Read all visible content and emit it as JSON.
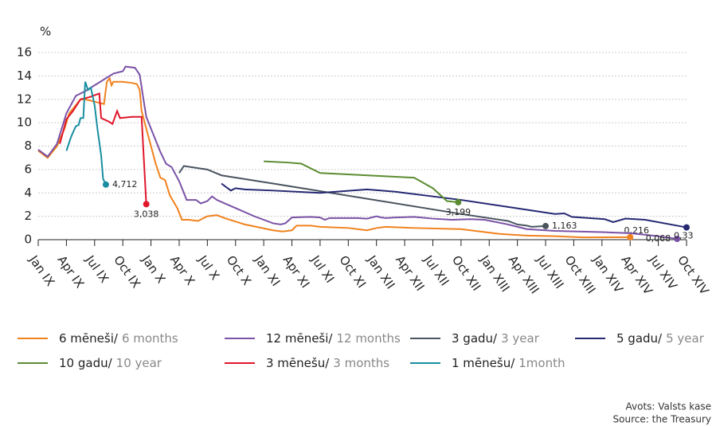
{
  "chart_data": {
    "type": "line",
    "y_unit": "%",
    "xlim": [
      0,
      69
    ],
    "xticks": [
      {
        "value": 0,
        "label": "Jan IX"
      },
      {
        "value": 3,
        "label": "Apr IX"
      },
      {
        "value": 6,
        "label": "Jul IX"
      },
      {
        "value": 9,
        "label": "Oct IX"
      },
      {
        "value": 12,
        "label": "Jan X"
      },
      {
        "value": 15,
        "label": "Apr X"
      },
      {
        "value": 18,
        "label": "Jul X"
      },
      {
        "value": 21,
        "label": "Oct X"
      },
      {
        "value": 24,
        "label": "Jan XI"
      },
      {
        "value": 27,
        "label": "Apr XI"
      },
      {
        "value": 30,
        "label": "Jul XI"
      },
      {
        "value": 33,
        "label": "Oct XI"
      },
      {
        "value": 36,
        "label": "Jan XII"
      },
      {
        "value": 39,
        "label": "Apr XII"
      },
      {
        "value": 42,
        "label": "Jul XII"
      },
      {
        "value": 45,
        "label": "Oct XII"
      },
      {
        "value": 48,
        "label": "Jan XIII"
      },
      {
        "value": 51,
        "label": "Apr XIII"
      },
      {
        "value": 54,
        "label": "Jul XIII"
      },
      {
        "value": 57,
        "label": "Oct XIII"
      },
      {
        "value": 60,
        "label": "Jan XIV"
      },
      {
        "value": 63,
        "label": "Apr XIV"
      },
      {
        "value": 66,
        "label": "Jul XIV"
      },
      {
        "value": 69,
        "label": "Oct XIV"
      }
    ],
    "ylim": [
      0,
      16
    ],
    "yticks": [
      0,
      2,
      4,
      6,
      8,
      10,
      12,
      14,
      16
    ],
    "grid": true,
    "series": [
      {
        "name": "6 mēneši/",
        "name_en": "6 months",
        "color": "#f0821e",
        "x": [
          0,
          1,
          2,
          2.8,
          3.3,
          4,
          4.5,
          5,
          6,
          7,
          7.3,
          7.6,
          7.8,
          8,
          9,
          10,
          10.5,
          10.8,
          11,
          11.5,
          12,
          12.5,
          13,
          13.5,
          14,
          14.8,
          15.3,
          16,
          17,
          18,
          19,
          20,
          22,
          25,
          26,
          27,
          27.5,
          29,
          30,
          33,
          35,
          36,
          37,
          40,
          45,
          49,
          52,
          55,
          58,
          63
        ],
        "values": [
          7.6,
          7.0,
          8.0,
          9.5,
          10.8,
          11.5,
          12,
          12,
          11.8,
          11.6,
          13.5,
          13.8,
          13.2,
          13.5,
          13.5,
          13.4,
          13.3,
          12.8,
          11,
          9.5,
          8,
          6.5,
          5.3,
          5.1,
          3.8,
          2.7,
          1.7,
          1.7,
          1.6,
          2.0,
          2.1,
          1.8,
          1.3,
          0.8,
          0.7,
          0.8,
          1.2,
          1.2,
          1.1,
          1.0,
          0.8,
          1.0,
          1.1,
          1.0,
          0.9,
          0.5,
          0.35,
          0.3,
          0.2,
          0.216
        ],
        "value_labels": [
          null,
          null,
          null,
          null,
          null,
          null,
          null,
          null,
          null,
          null,
          null,
          null,
          null,
          null,
          null,
          null,
          null,
          null,
          null,
          null,
          null,
          null,
          null,
          null,
          null,
          null,
          null,
          null,
          null,
          null,
          null,
          null,
          null,
          null,
          null,
          null,
          null,
          null,
          null,
          null,
          null,
          null,
          null,
          null,
          null,
          null,
          null,
          null,
          null,
          "0,216"
        ]
      },
      {
        "name": "12 mēneši/",
        "name_en": "12 months",
        "color": "#7b52a6",
        "x": [
          0,
          1,
          2,
          3,
          4,
          5,
          6,
          7,
          8,
          9,
          9.3,
          10.3,
          10.8,
          11.2,
          11.5,
          12,
          13,
          13.6,
          14.2,
          15,
          15.8,
          16.8,
          17.3,
          18,
          18.5,
          19,
          21,
          23,
          25,
          25.8,
          26.3,
          27,
          29,
          30,
          30.5,
          31,
          32,
          34,
          35,
          36,
          36.5,
          37,
          38,
          40,
          42,
          44,
          46,
          47.5,
          50,
          52,
          55,
          60,
          63,
          66,
          68
        ],
        "values": [
          7.7,
          7.1,
          8.2,
          10.8,
          12.3,
          12.7,
          13.2,
          13.7,
          14.2,
          14.4,
          14.8,
          14.7,
          14.1,
          12.0,
          10.5,
          9.5,
          7.5,
          6.5,
          6.2,
          5.0,
          3.4,
          3.4,
          3.1,
          3.3,
          3.7,
          3.4,
          2.7,
          2.0,
          1.4,
          1.3,
          1.4,
          1.9,
          1.95,
          1.9,
          1.7,
          1.85,
          1.85,
          1.85,
          1.8,
          2.0,
          1.9,
          1.85,
          1.9,
          1.95,
          1.8,
          1.7,
          1.75,
          1.7,
          1.3,
          0.9,
          0.75,
          0.65,
          0.55,
          0.3,
          0.068
        ],
        "value_labels": [
          null,
          null,
          null,
          null,
          null,
          null,
          null,
          null,
          null,
          null,
          null,
          null,
          null,
          null,
          null,
          null,
          null,
          null,
          null,
          null,
          null,
          null,
          null,
          null,
          null,
          null,
          null,
          null,
          null,
          null,
          null,
          null,
          null,
          null,
          null,
          null,
          null,
          null,
          null,
          null,
          null,
          null,
          null,
          null,
          null,
          null,
          null,
          null,
          null,
          null,
          null,
          null,
          null,
          null,
          "0,068"
        ]
      },
      {
        "name": "3 gadu/",
        "name_en": "3 year",
        "color": "#4a5560",
        "x": [
          15,
          15.5,
          18,
          19.5,
          25,
          35,
          45,
          50,
          51,
          52,
          52.5,
          54
        ],
        "values": [
          5.7,
          6.3,
          6.0,
          5.5,
          4.8,
          3.5,
          2.2,
          1.6,
          1.3,
          1.2,
          1.1,
          1.163
        ],
        "value_labels": [
          null,
          null,
          null,
          null,
          null,
          null,
          null,
          null,
          null,
          null,
          null,
          "1,163"
        ]
      },
      {
        "name": "5 gadu/",
        "name_en": "5 year",
        "color": "#262872",
        "x": [
          19.5,
          20,
          20.5,
          21,
          22,
          25,
          30,
          35,
          38,
          45,
          50,
          55,
          56,
          56.8,
          60.3,
          61.2,
          62.5,
          64.6,
          69
        ],
        "values": [
          4.8,
          4.5,
          4.2,
          4.4,
          4.3,
          4.2,
          4.0,
          4.3,
          4.1,
          3.4,
          2.8,
          2.2,
          2.25,
          1.95,
          1.75,
          1.5,
          1.8,
          1.7,
          1.05
        ]
      },
      {
        "name": "10 gadu/",
        "name_en": "10 year",
        "color": "#5b8c32",
        "x": [
          24,
          26.5,
          28,
          30,
          40,
          42,
          43.5,
          44.7
        ],
        "values": [
          6.7,
          6.6,
          6.5,
          5.7,
          5.3,
          4.4,
          3.3,
          3.199
        ],
        "value_labels": [
          null,
          null,
          null,
          null,
          null,
          null,
          null,
          "3,199"
        ]
      },
      {
        "name": "3 mēnešu/",
        "name_en": "3 months",
        "color": "#e0162b",
        "x": [
          2.3,
          3,
          3.7,
          4.5,
          5.5,
          6.5,
          6.7,
          7.5,
          7.9,
          8.4,
          8.7,
          10,
          11,
          11.5
        ],
        "values": [
          8.2,
          10.3,
          11,
          12,
          12.2,
          12.5,
          10.4,
          10.1,
          9.9,
          11.0,
          10.4,
          10.5,
          10.5,
          3.038
        ],
        "value_labels": [
          null,
          null,
          null,
          null,
          null,
          null,
          null,
          null,
          null,
          null,
          null,
          null,
          null,
          "3,038"
        ]
      },
      {
        "name": "1 mēnešu/",
        "name_en": "1month",
        "color": "#1a8ea0",
        "x": [
          3,
          3.5,
          4,
          4.3,
          4.5,
          4.8,
          5,
          5.3,
          5.6,
          6,
          6.3,
          6.7,
          6.9,
          7.2
        ],
        "values": [
          7.6,
          8.8,
          9.7,
          9.8,
          10.4,
          10.4,
          13.5,
          12.8,
          13.0,
          11.5,
          9.5,
          7.2,
          5.2,
          4.712
        ],
        "value_labels": [
          null,
          null,
          null,
          null,
          null,
          null,
          null,
          null,
          null,
          null,
          null,
          null,
          null,
          "4,712"
        ]
      }
    ],
    "annotations": [
      "0,33"
    ],
    "source": [
      "Avots: Valsts kase",
      "Source: the Treasury"
    ]
  }
}
